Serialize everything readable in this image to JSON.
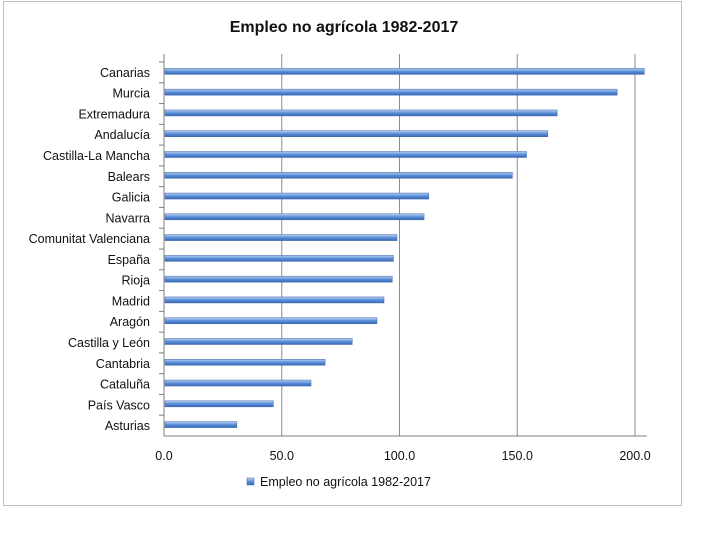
{
  "chart_data": {
    "type": "bar",
    "orientation": "horizontal",
    "title": "Empleo no agrícola 1982-2017",
    "categories": [
      "Canarias",
      "Murcia",
      "Extremadura",
      "Andalucía",
      "Castilla-La Mancha",
      "Balears",
      "Galicia",
      "Navarra",
      "Comunitat Valenciana",
      "España",
      "Rioja",
      "Madrid",
      "Aragón",
      "Castilla y León",
      "Cantabria",
      "Cataluña",
      "País Vasco",
      "Asturias"
    ],
    "series": [
      {
        "name": "Empleo no agrícola 1982-2017",
        "values": [
          203.5,
          192.0,
          166.5,
          162.5,
          153.5,
          147.5,
          112.0,
          110.0,
          98.5,
          97.0,
          96.5,
          93.0,
          90.0,
          79.5,
          68.0,
          62.0,
          46.0,
          30.5
        ]
      }
    ],
    "x_ticks": [
      "0.0",
      "50.0",
      "100.0",
      "150.0",
      "200.0"
    ],
    "xlim": [
      0,
      205
    ],
    "grid": true,
    "legend_position": "bottom",
    "colors": {
      "bar": "#4a7fd0",
      "bar_light": "#a9c8f0",
      "grid": "#8c8c8c"
    }
  }
}
